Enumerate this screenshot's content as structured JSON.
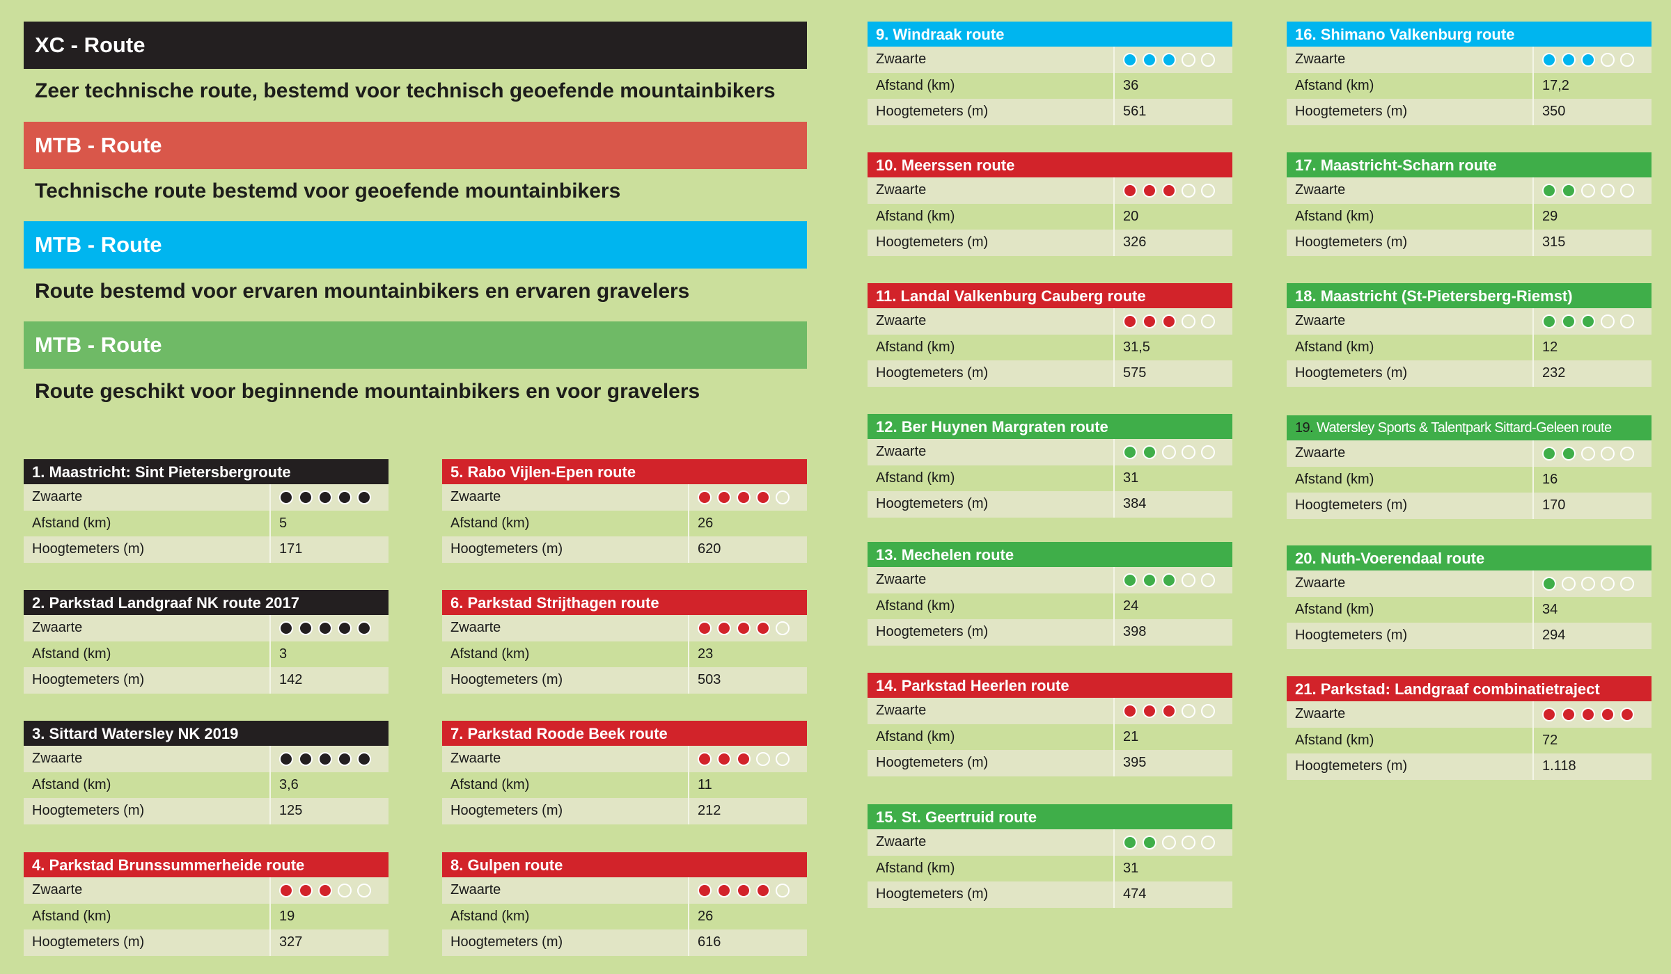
{
  "colors": {
    "black": "#231f20",
    "red": "#d2232a",
    "blue": "#00b5ef",
    "green": "#3fae49",
    "legend_red": "#d9574a",
    "legend_green": "#6fba66"
  },
  "legend": [
    {
      "title": "XC - Route",
      "description": "Zeer technische route, bestemd voor technisch geoefende mountainbikers",
      "color": "#231f20"
    },
    {
      "title": "MTB - Route",
      "description": "Technische route bestemd voor geoefende mountainbikers",
      "color": "#d9574a"
    },
    {
      "title": "MTB - Route",
      "description": "Route bestemd voor ervaren mountainbikers en ervaren gravelers",
      "color": "#00b5ef"
    },
    {
      "title": "MTB - Route",
      "description": "Route geschikt voor beginnende mountainbikers en voor gravelers",
      "color": "#6fba66"
    }
  ],
  "labels": {
    "difficulty": "Zwaarte",
    "distance": "Afstand (km)",
    "elevation": "Hoogtemeters (m)"
  },
  "routes": [
    {
      "number": "1.",
      "name": "Maastricht: Sint Pietersbergroute",
      "color": "black",
      "difficulty": 5,
      "distance": "5",
      "elevation": "171"
    },
    {
      "number": "2.",
      "name": "Parkstad Landgraaf NK route 2017",
      "color": "black",
      "difficulty": 5,
      "distance": "3",
      "elevation": "142"
    },
    {
      "number": "3.",
      "name": "Sittard Watersley NK 2019",
      "color": "black",
      "difficulty": 5,
      "distance": "3,6",
      "elevation": "125"
    },
    {
      "number": "4.",
      "name": "Parkstad Brunssummerheide route",
      "color": "red",
      "difficulty": 3,
      "distance": "19",
      "elevation": "327"
    },
    {
      "number": "5.",
      "name": "Rabo Vijlen-Epen route",
      "color": "red",
      "difficulty": 4,
      "distance": "26",
      "elevation": "620"
    },
    {
      "number": "6.",
      "name": "Parkstad Strijthagen route",
      "color": "red",
      "difficulty": 4,
      "distance": "23",
      "elevation": "503"
    },
    {
      "number": "7.",
      "name": "Parkstad Roode Beek route",
      "color": "red",
      "difficulty": 3,
      "distance": "11",
      "elevation": "212"
    },
    {
      "number": "8.",
      "name": "Gulpen route",
      "color": "red",
      "difficulty": 4,
      "distance": "26",
      "elevation": "616"
    },
    {
      "number": "9.",
      "name": "Windraak route",
      "color": "blue",
      "difficulty": 3,
      "distance": "36",
      "elevation": "561"
    },
    {
      "number": "10.",
      "name": "Meerssen route",
      "color": "red",
      "difficulty": 3,
      "distance": "20",
      "elevation": "326"
    },
    {
      "number": "11.",
      "name": "Landal Valkenburg Cauberg route",
      "color": "red",
      "difficulty": 3,
      "distance": "31,5",
      "elevation": "575"
    },
    {
      "number": "12.",
      "name": "Ber Huynen Margraten route",
      "color": "green",
      "difficulty": 2,
      "distance": "31",
      "elevation": "384"
    },
    {
      "number": "13.",
      "name": "Mechelen route",
      "color": "green",
      "difficulty": 3,
      "distance": "24",
      "elevation": "398"
    },
    {
      "number": "14.",
      "name": "Parkstad Heerlen route",
      "color": "red",
      "difficulty": 3,
      "distance": "21",
      "elevation": "395"
    },
    {
      "number": "15.",
      "name": "St. Geertruid route",
      "color": "green",
      "difficulty": 2,
      "distance": "31",
      "elevation": "474"
    },
    {
      "number": "16.",
      "name": "Shimano Valkenburg route",
      "color": "blue",
      "difficulty": 3,
      "distance": "17,2",
      "elevation": "350"
    },
    {
      "number": "17.",
      "name": "Maastricht-Scharn route",
      "color": "green",
      "difficulty": 2,
      "distance": "29",
      "elevation": "315"
    },
    {
      "number": "18.",
      "name": "Maastricht (St-Pietersberg-Riemst)",
      "color": "green",
      "difficulty": 3,
      "distance": "12",
      "elevation": "232"
    },
    {
      "number": "19.",
      "name": "Watersley Sports & Talentpark Sittard-Geleen route",
      "color": "green",
      "difficulty": 2,
      "distance": "16",
      "elevation": "170"
    },
    {
      "number": "20.",
      "name": "Nuth-Voerendaal route",
      "color": "green",
      "difficulty": 1,
      "distance": "34",
      "elevation": "294"
    },
    {
      "number": "21.",
      "name": "Parkstad: Landgraaf combinatietraject",
      "color": "red",
      "difficulty": 5,
      "distance": "72",
      "elevation": "1.118"
    }
  ]
}
